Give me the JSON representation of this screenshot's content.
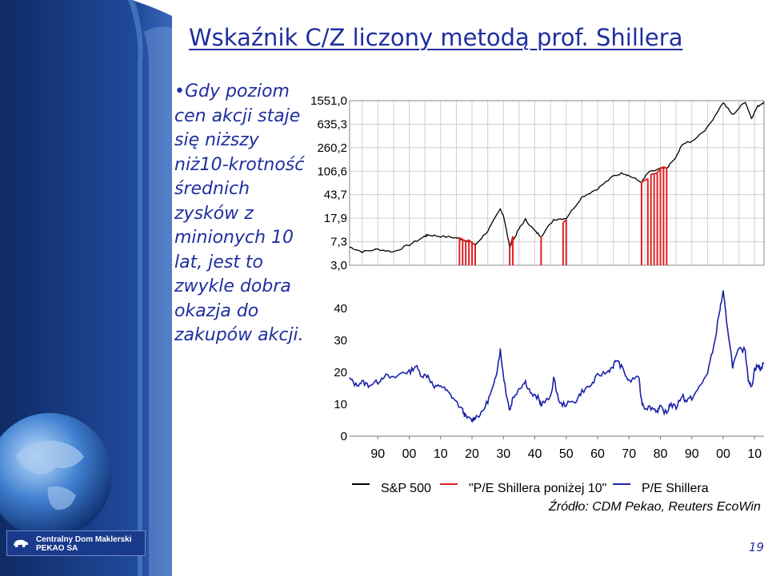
{
  "slide": {
    "title": "Wskaźnik C/Z liczony metodą prof. Shillera",
    "bullet_text": "Gdy poziom cen akcji staje się niższy niż10-krotność średnich zysków z minionych 10 lat, jest to zwykle dobra okazja do zakupów akcji.",
    "logo_line1": "Centralny Dom Maklerski",
    "logo_line2": "PEKAO SA",
    "page_number": "19",
    "source": "Źródło: CDM Pekao, Reuters EcoWin"
  },
  "colors": {
    "sidebar": "#1c3d86",
    "text": "#1f2f9e",
    "sp500": "#000000",
    "below10": "#e02020",
    "pe": "#1a22a8"
  },
  "chart_data": {
    "type": "line",
    "x_tick_labels": [
      "90",
      "00",
      "10",
      "20",
      "30",
      "40",
      "50",
      "60",
      "70",
      "80",
      "90",
      "00",
      "10"
    ],
    "x_ticks": [
      1890,
      1900,
      1910,
      1920,
      1930,
      1940,
      1950,
      1960,
      1970,
      1980,
      1990,
      2000,
      2010
    ],
    "xlim": [
      1881,
      2013
    ],
    "panels": [
      {
        "name": "top",
        "scale": "log",
        "y_tick_labels": [
          "1551,0",
          "635,3",
          "260,2",
          "106,6",
          "43,7",
          "17,9",
          "7,3",
          "3,0"
        ],
        "y_ticks": [
          1551,
          635.3,
          260.2,
          106.6,
          43.7,
          17.9,
          7.3,
          3.0
        ],
        "ylim": [
          3.0,
          1551
        ],
        "grid": true
      },
      {
        "name": "bottom",
        "scale": "linear",
        "y_tick_labels": [
          "40",
          "30",
          "20",
          "10",
          "0"
        ],
        "y_ticks": [
          40,
          30,
          20,
          10,
          0
        ],
        "ylim": [
          0,
          45
        ],
        "grid": false
      }
    ],
    "series": [
      {
        "name": "S&P 500",
        "panel": "top",
        "color": "#000000",
        "x": [
          1881,
          1885,
          1890,
          1895,
          1900,
          1905,
          1906,
          1910,
          1915,
          1917,
          1920,
          1921,
          1925,
          1929,
          1930,
          1932,
          1935,
          1937,
          1940,
          1942,
          1946,
          1950,
          1955,
          1960,
          1965,
          1968,
          1970,
          1974,
          1976,
          1980,
          1982,
          1985,
          1987,
          1990,
          1995,
          2000,
          2003,
          2007,
          2009,
          2011,
          2013
        ],
        "y": [
          6.0,
          5.0,
          5.5,
          5.0,
          6.5,
          9.0,
          9.5,
          9.0,
          8.5,
          8.0,
          7.0,
          6.5,
          11,
          25,
          20,
          6.0,
          12,
          17,
          11,
          9,
          17,
          18,
          40,
          55,
          88,
          100,
          90,
          70,
          100,
          118,
          120,
          180,
          300,
          330,
          560,
          1450,
          900,
          1500,
          800,
          1250,
          1480
        ]
      },
      {
        "name": "\"P/E Shillera poniżej 10\"",
        "panel": "top",
        "color": "#e02020",
        "segments": [
          {
            "x": [
              1916,
              1917,
              1918,
              1919,
              1920,
              1921
            ],
            "y": [
              8.5,
              8.0,
              7.5,
              7.8,
              7.0,
              6.5
            ]
          },
          {
            "x": [
              1932,
              1933
            ],
            "y": [
              6.0,
              9.0
            ]
          },
          {
            "x": [
              1942
            ],
            "y": [
              9.0
            ]
          },
          {
            "x": [
              1949,
              1950
            ],
            "y": [
              15,
              17
            ]
          },
          {
            "x": [
              1974,
              1976
            ],
            "y": [
              70,
              80
            ]
          },
          {
            "x": [
              1977,
              1978,
              1979,
              1980,
              1981,
              1982
            ],
            "y": [
              95,
              96,
              100,
              118,
              125,
              120
            ]
          }
        ]
      },
      {
        "name": "P/E Shillera",
        "panel": "bottom",
        "color": "#1a22a8",
        "x": [
          1881,
          1883,
          1885,
          1887,
          1890,
          1892,
          1895,
          1898,
          1900,
          1902,
          1904,
          1906,
          1908,
          1910,
          1912,
          1914,
          1917,
          1918,
          1920,
          1921,
          1923,
          1925,
          1927,
          1928,
          1929,
          1930,
          1931,
          1932,
          1933,
          1935,
          1937,
          1939,
          1941,
          1942,
          1945,
          1946,
          1948,
          1950,
          1953,
          1955,
          1958,
          1960,
          1963,
          1965,
          1966,
          1968,
          1970,
          1973,
          1974,
          1975,
          1977,
          1979,
          1980,
          1982,
          1983,
          1985,
          1987,
          1988,
          1990,
          1993,
          1995,
          1997,
          1999,
          2000,
          2001,
          2003,
          2005,
          2007,
          2008,
          2009,
          2010,
          2011,
          2012,
          2013
        ],
        "y": [
          18,
          16,
          17,
          16,
          17,
          19,
          18,
          20,
          20,
          22,
          19,
          19,
          15,
          16,
          14,
          12,
          8,
          6,
          5,
          6,
          7,
          11,
          16,
          21,
          27,
          19,
          13,
          8,
          12,
          15,
          17,
          13,
          12,
          10,
          12,
          18,
          10,
          10,
          11,
          14,
          16,
          19,
          20,
          22,
          24,
          21,
          17,
          19,
          11,
          9,
          9,
          8,
          9,
          7,
          10,
          9,
          13,
          11,
          12,
          16,
          20,
          28,
          40,
          45,
          37,
          22,
          27,
          27,
          18,
          15,
          21,
          22,
          21,
          23
        ]
      }
    ]
  }
}
